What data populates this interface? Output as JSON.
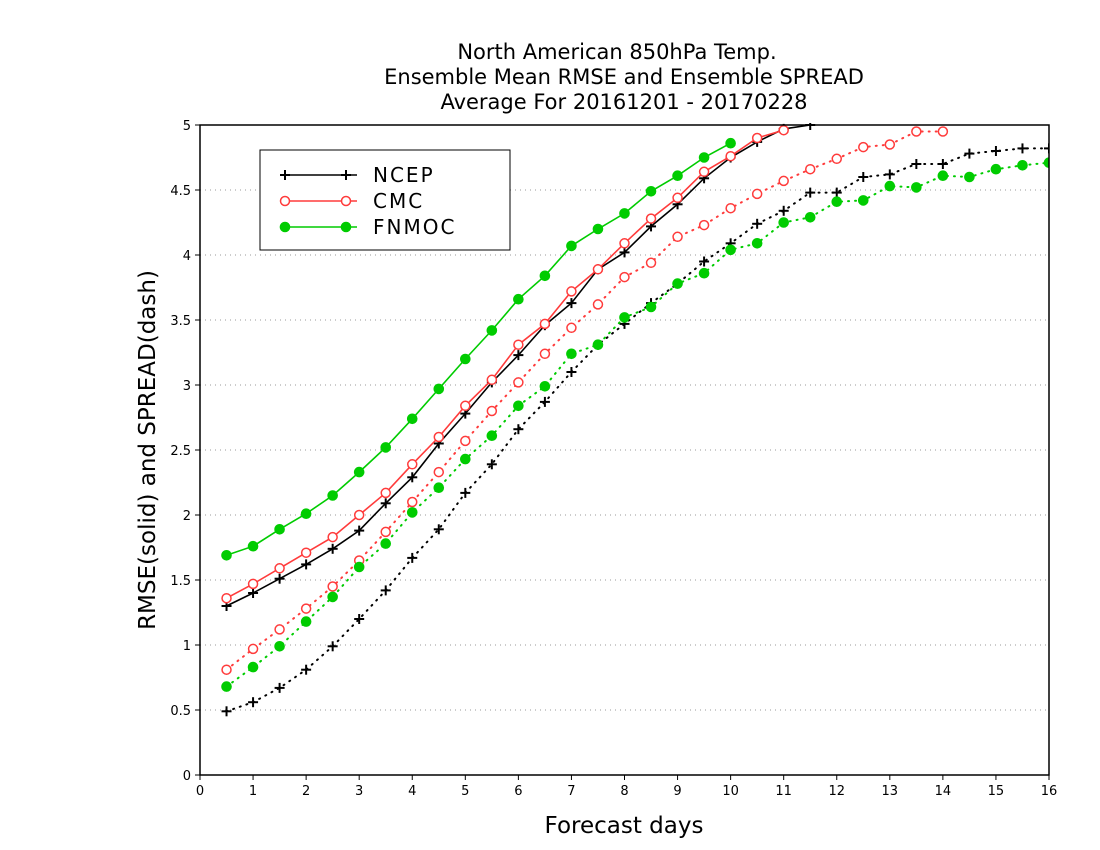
{
  "chart_data": {
    "type": "line",
    "title_lines": [
      "North American 850hPa Temp.",
      "Ensemble Mean RMSE and Ensemble SPREAD",
      "Average For 20161201 - 20170228"
    ],
    "xlabel": "Forecast days",
    "ylabel": "RMSE(solid) and SPREAD(dash)",
    "xlim": [
      0,
      16
    ],
    "ylim": [
      0,
      5
    ],
    "x_ticks": [
      "0",
      "1",
      "2",
      "3",
      "4",
      "5",
      "6",
      "7",
      "8",
      "9",
      "10",
      "11",
      "12",
      "13",
      "14",
      "15",
      "16"
    ],
    "y_ticks": [
      "0",
      "0.5",
      "1",
      "1.5",
      "2",
      "2.5",
      "3",
      "3.5",
      "4",
      "4.5",
      "5"
    ],
    "grid": "horizontal dotted",
    "legend_position": "top-left",
    "series": [
      {
        "name": "NCEP",
        "color": "#000000",
        "marker": "plus",
        "rmse": {
          "x": [
            0.5,
            1,
            1.5,
            2,
            2.5,
            3,
            3.5,
            4,
            4.5,
            5,
            5.5,
            6,
            6.5,
            7,
            7.5,
            8,
            8.5,
            9,
            9.5,
            10,
            10.5,
            11,
            11.5
          ],
          "y": [
            1.3,
            1.4,
            1.51,
            1.62,
            1.74,
            1.88,
            2.09,
            2.29,
            2.55,
            2.78,
            3.02,
            3.23,
            3.46,
            3.63,
            3.89,
            4.02,
            4.22,
            4.39,
            4.59,
            4.75,
            4.87,
            4.97,
            5.0
          ]
        },
        "spread": {
          "x": [
            0.5,
            1,
            1.5,
            2,
            2.5,
            3,
            3.5,
            4,
            4.5,
            5,
            5.5,
            6,
            6.5,
            7,
            7.5,
            8,
            8.5,
            9,
            9.5,
            10,
            10.5,
            11,
            11.5,
            12,
            12.5,
            13,
            13.5,
            14,
            14.5,
            15,
            15.5,
            16
          ],
          "y": [
            0.49,
            0.56,
            0.67,
            0.81,
            0.99,
            1.2,
            1.42,
            1.67,
            1.89,
            2.17,
            2.39,
            2.66,
            2.87,
            3.1,
            3.31,
            3.47,
            3.63,
            3.78,
            3.95,
            4.09,
            4.24,
            4.34,
            4.48,
            4.48,
            4.6,
            4.62,
            4.7,
            4.7,
            4.78,
            4.8,
            4.82,
            4.82
          ]
        }
      },
      {
        "name": "CMC",
        "color": "#ff3b3b",
        "marker": "open-circle",
        "rmse": {
          "x": [
            0.5,
            1,
            1.5,
            2,
            2.5,
            3,
            3.5,
            4,
            4.5,
            5,
            5.5,
            6,
            6.5,
            7,
            7.5,
            8,
            8.5,
            9,
            9.5,
            10,
            10.5,
            11
          ],
          "y": [
            1.36,
            1.47,
            1.59,
            1.71,
            1.83,
            2.0,
            2.17,
            2.39,
            2.6,
            2.84,
            3.04,
            3.31,
            3.47,
            3.72,
            3.89,
            4.09,
            4.28,
            4.44,
            4.64,
            4.76,
            4.9,
            4.96
          ]
        },
        "spread": {
          "x": [
            0.5,
            1,
            1.5,
            2,
            2.5,
            3,
            3.5,
            4,
            4.5,
            5,
            5.5,
            6,
            6.5,
            7,
            7.5,
            8,
            8.5,
            9,
            9.5,
            10,
            10.5,
            11,
            11.5,
            12,
            12.5,
            13,
            13.5,
            14
          ],
          "y": [
            0.81,
            0.97,
            1.12,
            1.28,
            1.45,
            1.65,
            1.87,
            2.1,
            2.33,
            2.57,
            2.8,
            3.02,
            3.24,
            3.44,
            3.62,
            3.83,
            3.94,
            4.14,
            4.23,
            4.36,
            4.47,
            4.57,
            4.66,
            4.74,
            4.83,
            4.85,
            4.95,
            4.95
          ]
        }
      },
      {
        "name": "FNMOC",
        "color": "#00cc00",
        "marker": "filled-circle",
        "rmse": {
          "x": [
            0.5,
            1,
            1.5,
            2,
            2.5,
            3,
            3.5,
            4,
            4.5,
            5,
            5.5,
            6,
            6.5,
            7,
            7.5,
            8,
            8.5,
            9,
            9.5,
            10
          ],
          "y": [
            1.69,
            1.76,
            1.89,
            2.01,
            2.15,
            2.33,
            2.52,
            2.74,
            2.97,
            3.2,
            3.42,
            3.66,
            3.84,
            4.07,
            4.2,
            4.32,
            4.49,
            4.61,
            4.75,
            4.86
          ]
        },
        "spread": {
          "x": [
            0.5,
            1,
            1.5,
            2,
            2.5,
            3,
            3.5,
            4,
            4.5,
            5,
            5.5,
            6,
            6.5,
            7,
            7.5,
            8,
            8.5,
            9,
            9.5,
            10,
            10.5,
            11,
            11.5,
            12,
            12.5,
            13,
            13.5,
            14,
            14.5,
            15,
            15.5,
            16
          ],
          "y": [
            0.68,
            0.83,
            0.99,
            1.18,
            1.37,
            1.6,
            1.78,
            2.02,
            2.21,
            2.43,
            2.61,
            2.84,
            2.99,
            3.24,
            3.31,
            3.52,
            3.6,
            3.78,
            3.86,
            4.04,
            4.09,
            4.25,
            4.29,
            4.41,
            4.42,
            4.53,
            4.52,
            4.61,
            4.6,
            4.66,
            4.69,
            4.71
          ]
        }
      }
    ]
  }
}
